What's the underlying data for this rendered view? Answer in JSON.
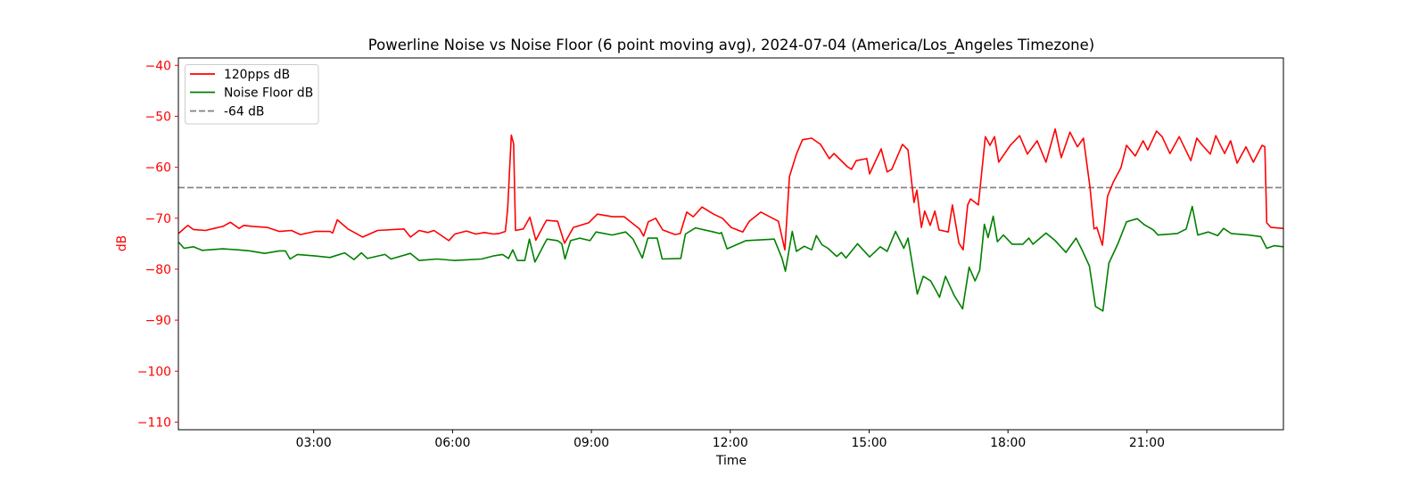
{
  "chart_data": {
    "type": "line",
    "title": "Powerline Noise vs Noise Floor (6 point moving avg), 2024-07-04 (America/Los_Angeles Timezone)",
    "xlabel": "Time",
    "ylabel": "dB",
    "x_unit": "hours since 00:00",
    "xlim": [
      0.077,
      23.95
    ],
    "ylim": [
      -111.5,
      -38.55
    ],
    "xticks": [
      {
        "value": 3,
        "label": "03:00"
      },
      {
        "value": 6,
        "label": "06:00"
      },
      {
        "value": 9,
        "label": "09:00"
      },
      {
        "value": 12,
        "label": "12:00"
      },
      {
        "value": 15,
        "label": "15:00"
      },
      {
        "value": 18,
        "label": "18:00"
      },
      {
        "value": 21,
        "label": "21:00"
      }
    ],
    "yticks": [
      {
        "value": -40,
        "label": "−40"
      },
      {
        "value": -50,
        "label": "−50"
      },
      {
        "value": -60,
        "label": "−60"
      },
      {
        "value": -70,
        "label": "−70"
      },
      {
        "value": -80,
        "label": "−80"
      },
      {
        "value": -90,
        "label": "−90"
      },
      {
        "value": -100,
        "label": "−100"
      },
      {
        "value": -110,
        "label": "−110"
      }
    ],
    "grid": false,
    "legend_position": "top-left",
    "hline": {
      "name": "-64 dB",
      "value": -64,
      "color": "#808080"
    },
    "series": [
      {
        "name": "120pps dB",
        "color": "#ff0000",
        "points": [
          [
            0.08,
            -73.0
          ],
          [
            0.28,
            -71.4
          ],
          [
            0.4,
            -72.2
          ],
          [
            0.66,
            -72.4
          ],
          [
            0.85,
            -72.0
          ],
          [
            1.04,
            -71.6
          ],
          [
            1.2,
            -70.8
          ],
          [
            1.39,
            -72.0
          ],
          [
            1.49,
            -71.4
          ],
          [
            1.67,
            -71.6
          ],
          [
            2.0,
            -71.8
          ],
          [
            2.26,
            -72.6
          ],
          [
            2.52,
            -72.4
          ],
          [
            2.71,
            -73.2
          ],
          [
            3.03,
            -72.6
          ],
          [
            3.35,
            -72.6
          ],
          [
            3.41,
            -72.9
          ],
          [
            3.51,
            -70.3
          ],
          [
            3.74,
            -72.1
          ],
          [
            4.06,
            -73.7
          ],
          [
            4.38,
            -72.4
          ],
          [
            4.95,
            -72.1
          ],
          [
            5.09,
            -73.7
          ],
          [
            5.28,
            -72.4
          ],
          [
            5.47,
            -72.8
          ],
          [
            5.6,
            -72.4
          ],
          [
            5.92,
            -74.4
          ],
          [
            6.05,
            -73.1
          ],
          [
            6.3,
            -72.5
          ],
          [
            6.5,
            -73.1
          ],
          [
            6.69,
            -72.8
          ],
          [
            6.88,
            -73.1
          ],
          [
            7.01,
            -73.0
          ],
          [
            7.14,
            -72.6
          ],
          [
            7.19,
            -68.2
          ],
          [
            7.27,
            -53.7
          ],
          [
            7.32,
            -55.4
          ],
          [
            7.36,
            -72.4
          ],
          [
            7.53,
            -72.1
          ],
          [
            7.67,
            -69.8
          ],
          [
            7.8,
            -74.3
          ],
          [
            7.98,
            -71.2
          ],
          [
            8.03,
            -70.4
          ],
          [
            8.27,
            -70.6
          ],
          [
            8.42,
            -74.9
          ],
          [
            8.61,
            -71.8
          ],
          [
            8.94,
            -70.9
          ],
          [
            9.13,
            -69.2
          ],
          [
            9.46,
            -69.7
          ],
          [
            9.71,
            -69.7
          ],
          [
            10.04,
            -72.1
          ],
          [
            10.13,
            -73.5
          ],
          [
            10.23,
            -70.7
          ],
          [
            10.39,
            -70.0
          ],
          [
            10.54,
            -72.3
          ],
          [
            10.81,
            -73.2
          ],
          [
            10.92,
            -73.0
          ],
          [
            11.06,
            -68.8
          ],
          [
            11.2,
            -69.7
          ],
          [
            11.39,
            -67.8
          ],
          [
            11.64,
            -69.2
          ],
          [
            11.83,
            -70.0
          ],
          [
            12.02,
            -71.8
          ],
          [
            12.27,
            -72.7
          ],
          [
            12.41,
            -70.6
          ],
          [
            12.66,
            -68.8
          ],
          [
            13.04,
            -70.6
          ],
          [
            13.18,
            -76.2
          ],
          [
            13.28,
            -61.8
          ],
          [
            13.43,
            -57.4
          ],
          [
            13.56,
            -54.6
          ],
          [
            13.76,
            -54.3
          ],
          [
            13.95,
            -55.5
          ],
          [
            14.14,
            -58.3
          ],
          [
            14.24,
            -57.3
          ],
          [
            14.53,
            -59.9
          ],
          [
            14.62,
            -60.4
          ],
          [
            14.72,
            -58.7
          ],
          [
            14.95,
            -58.3
          ],
          [
            15.01,
            -61.3
          ],
          [
            15.26,
            -56.4
          ],
          [
            15.39,
            -60.9
          ],
          [
            15.49,
            -60.4
          ],
          [
            15.72,
            -55.5
          ],
          [
            15.84,
            -56.6
          ],
          [
            15.97,
            -66.9
          ],
          [
            16.03,
            -64.5
          ],
          [
            16.13,
            -71.8
          ],
          [
            16.2,
            -68.6
          ],
          [
            16.32,
            -71.4
          ],
          [
            16.42,
            -68.6
          ],
          [
            16.51,
            -72.3
          ],
          [
            16.71,
            -72.7
          ],
          [
            16.8,
            -67.4
          ],
          [
            16.94,
            -74.9
          ],
          [
            17.03,
            -76.2
          ],
          [
            17.13,
            -67.4
          ],
          [
            17.19,
            -66.2
          ],
          [
            17.36,
            -67.4
          ],
          [
            17.51,
            -54.0
          ],
          [
            17.61,
            -55.7
          ],
          [
            17.71,
            -54.0
          ],
          [
            17.8,
            -59.0
          ],
          [
            18.05,
            -55.7
          ],
          [
            18.25,
            -53.8
          ],
          [
            18.42,
            -57.4
          ],
          [
            18.63,
            -54.8
          ],
          [
            18.82,
            -59.0
          ],
          [
            19.02,
            -52.5
          ],
          [
            19.15,
            -58.1
          ],
          [
            19.34,
            -53.1
          ],
          [
            19.5,
            -56.0
          ],
          [
            19.63,
            -54.3
          ],
          [
            19.77,
            -63.9
          ],
          [
            19.86,
            -72.1
          ],
          [
            19.92,
            -71.8
          ],
          [
            20.04,
            -75.3
          ],
          [
            20.15,
            -65.7
          ],
          [
            20.27,
            -63.0
          ],
          [
            20.44,
            -60.1
          ],
          [
            20.56,
            -55.7
          ],
          [
            20.75,
            -57.8
          ],
          [
            20.92,
            -54.8
          ],
          [
            21.02,
            -56.6
          ],
          [
            21.21,
            -52.9
          ],
          [
            21.33,
            -54.0
          ],
          [
            21.5,
            -57.3
          ],
          [
            21.7,
            -54.0
          ],
          [
            21.95,
            -58.7
          ],
          [
            22.08,
            -54.3
          ],
          [
            22.2,
            -55.7
          ],
          [
            22.37,
            -57.4
          ],
          [
            22.49,
            -53.8
          ],
          [
            22.68,
            -57.3
          ],
          [
            22.81,
            -54.8
          ],
          [
            22.95,
            -59.2
          ],
          [
            23.14,
            -56.0
          ],
          [
            23.3,
            -59.0
          ],
          [
            23.49,
            -55.7
          ],
          [
            23.55,
            -56.0
          ],
          [
            23.59,
            -70.9
          ],
          [
            23.68,
            -71.8
          ],
          [
            23.95,
            -72.0
          ]
        ]
      },
      {
        "name": "Noise Floor dB",
        "color": "#008000",
        "points": [
          [
            0.08,
            -74.7
          ],
          [
            0.2,
            -75.9
          ],
          [
            0.4,
            -75.6
          ],
          [
            0.59,
            -76.3
          ],
          [
            1.04,
            -76.0
          ],
          [
            1.36,
            -76.2
          ],
          [
            1.62,
            -76.4
          ],
          [
            1.94,
            -76.9
          ],
          [
            2.26,
            -76.4
          ],
          [
            2.39,
            -76.4
          ],
          [
            2.49,
            -78.0
          ],
          [
            2.65,
            -77.1
          ],
          [
            3.03,
            -77.4
          ],
          [
            3.35,
            -77.7
          ],
          [
            3.67,
            -76.8
          ],
          [
            3.87,
            -78.1
          ],
          [
            4.03,
            -76.8
          ],
          [
            4.16,
            -77.9
          ],
          [
            4.54,
            -77.1
          ],
          [
            4.67,
            -78.0
          ],
          [
            5.09,
            -76.9
          ],
          [
            5.28,
            -78.3
          ],
          [
            5.66,
            -78.0
          ],
          [
            6.05,
            -78.3
          ],
          [
            6.63,
            -78.0
          ],
          [
            6.88,
            -77.4
          ],
          [
            7.08,
            -77.1
          ],
          [
            7.21,
            -77.9
          ],
          [
            7.3,
            -76.2
          ],
          [
            7.4,
            -78.3
          ],
          [
            7.56,
            -78.3
          ],
          [
            7.66,
            -74.1
          ],
          [
            7.78,
            -78.6
          ],
          [
            7.98,
            -75.1
          ],
          [
            8.04,
            -74.1
          ],
          [
            8.27,
            -74.4
          ],
          [
            8.36,
            -75.0
          ],
          [
            8.43,
            -78.0
          ],
          [
            8.55,
            -74.4
          ],
          [
            8.75,
            -73.9
          ],
          [
            8.97,
            -74.4
          ],
          [
            9.1,
            -72.7
          ],
          [
            9.45,
            -73.3
          ],
          [
            9.74,
            -72.7
          ],
          [
            9.9,
            -74.1
          ],
          [
            10.1,
            -77.8
          ],
          [
            10.22,
            -73.9
          ],
          [
            10.42,
            -73.9
          ],
          [
            10.53,
            -78.0
          ],
          [
            10.93,
            -77.9
          ],
          [
            11.03,
            -73.1
          ],
          [
            11.25,
            -71.9
          ],
          [
            11.64,
            -72.7
          ],
          [
            11.77,
            -73.0
          ],
          [
            11.81,
            -72.8
          ],
          [
            11.93,
            -76.0
          ],
          [
            12.34,
            -74.4
          ],
          [
            12.95,
            -74.1
          ],
          [
            13.12,
            -77.9
          ],
          [
            13.19,
            -80.4
          ],
          [
            13.34,
            -72.6
          ],
          [
            13.43,
            -76.5
          ],
          [
            13.6,
            -75.5
          ],
          [
            13.76,
            -76.2
          ],
          [
            13.86,
            -73.4
          ],
          [
            13.98,
            -75.2
          ],
          [
            14.11,
            -75.9
          ],
          [
            14.3,
            -77.5
          ],
          [
            14.4,
            -76.7
          ],
          [
            14.5,
            -77.8
          ],
          [
            14.75,
            -75.0
          ],
          [
            15.01,
            -77.6
          ],
          [
            15.24,
            -75.6
          ],
          [
            15.39,
            -76.5
          ],
          [
            15.57,
            -72.6
          ],
          [
            15.75,
            -75.9
          ],
          [
            15.84,
            -73.9
          ],
          [
            16.04,
            -84.9
          ],
          [
            16.17,
            -81.4
          ],
          [
            16.33,
            -82.3
          ],
          [
            16.45,
            -84.3
          ],
          [
            16.52,
            -85.5
          ],
          [
            16.65,
            -81.4
          ],
          [
            16.84,
            -85.2
          ],
          [
            17.02,
            -87.8
          ],
          [
            17.16,
            -79.6
          ],
          [
            17.29,
            -82.3
          ],
          [
            17.39,
            -80.2
          ],
          [
            17.49,
            -71.2
          ],
          [
            17.57,
            -73.8
          ],
          [
            17.68,
            -69.6
          ],
          [
            17.77,
            -74.6
          ],
          [
            17.9,
            -73.3
          ],
          [
            18.09,
            -75.1
          ],
          [
            18.32,
            -75.1
          ],
          [
            18.45,
            -73.9
          ],
          [
            18.54,
            -75.1
          ],
          [
            18.82,
            -72.9
          ],
          [
            19.02,
            -74.4
          ],
          [
            19.25,
            -76.7
          ],
          [
            19.47,
            -73.9
          ],
          [
            19.6,
            -76.2
          ],
          [
            19.76,
            -79.4
          ],
          [
            19.89,
            -87.3
          ],
          [
            20.05,
            -88.2
          ],
          [
            20.18,
            -78.8
          ],
          [
            20.37,
            -75.1
          ],
          [
            20.56,
            -70.7
          ],
          [
            20.79,
            -70.1
          ],
          [
            20.95,
            -71.3
          ],
          [
            21.14,
            -72.3
          ],
          [
            21.24,
            -73.3
          ],
          [
            21.66,
            -73.0
          ],
          [
            21.85,
            -72.1
          ],
          [
            21.98,
            -67.7
          ],
          [
            22.1,
            -73.3
          ],
          [
            22.33,
            -72.7
          ],
          [
            22.53,
            -73.4
          ],
          [
            22.66,
            -72.0
          ],
          [
            22.82,
            -73.0
          ],
          [
            23.2,
            -73.3
          ],
          [
            23.46,
            -73.6
          ],
          [
            23.59,
            -75.9
          ],
          [
            23.75,
            -75.4
          ],
          [
            23.95,
            -75.6
          ]
        ]
      }
    ]
  },
  "colors": {
    "axis_label_color": "#ff0000",
    "text": "#000000"
  }
}
